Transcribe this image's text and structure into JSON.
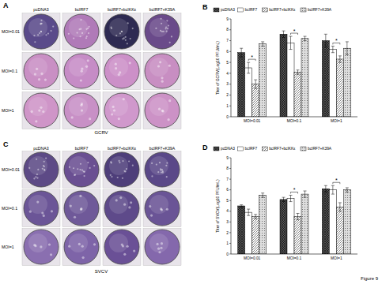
{
  "figure": {
    "label": "Figure 9",
    "panels": [
      {
        "title": "A",
        "columns": [
          "pcDNA3",
          "bcIRF7",
          "bcIRF7+bcIKKε",
          "bcIRF7+K39A"
        ],
        "rows": [
          "MOI=0.01",
          "MOI=0.1",
          "MOI=1"
        ],
        "virus": "GCRV"
      },
      {
        "title": "C",
        "columns": [
          "pcDNA3",
          "bcIRF7",
          "bcIRF7+bcIKKε",
          "bcIRF7+K39A"
        ],
        "rows": [
          "MOI=0.01",
          "MOI=0.1",
          "MOI=1"
        ],
        "virus": "SVCV"
      }
    ]
  },
  "chart_data": [
    {
      "type": "bar",
      "title": "B",
      "y_label": "Titer of GCRV(Log10 PFU/mL)",
      "categories": [
        "MOI=0.01",
        "MOI=0.1",
        "MOI=1"
      ],
      "series": [
        {
          "name": "pcDNA3",
          "color": "#555555",
          "values": [
            5.9,
            7.6,
            7.0
          ],
          "errors": [
            0.4,
            0.3,
            0.6
          ]
        },
        {
          "name": "bcIRF7",
          "color": "#ffffff",
          "values": [
            4.5,
            6.8,
            6.2
          ],
          "errors": [
            0.5,
            0.6,
            0.3
          ]
        },
        {
          "name": "bcIRF7+bcIKKε",
          "color": "#ffffff",
          "values": [
            3.0,
            4.1,
            5.3
          ],
          "errors": [
            0.4,
            0.2,
            0.3
          ]
        },
        {
          "name": "bcIRF7+K39A",
          "color": "#dddddd",
          "values": [
            6.7,
            7.2,
            6.3
          ],
          "errors": [
            0.2,
            0.2,
            0.6
          ]
        }
      ],
      "annotations": [
        {
          "text": "*",
          "category": 0,
          "series": [
            1,
            2
          ]
        },
        {
          "text": "*",
          "category": 1,
          "series": [
            1,
            2
          ]
        },
        {
          "text": "*",
          "category": 2,
          "series": [
            1,
            2
          ]
        }
      ],
      "ylim": [
        0,
        9
      ],
      "yticks": [
        0,
        1,
        2,
        3,
        4,
        5,
        6,
        7,
        8,
        9
      ],
      "legend": "top",
      "grid": false
    },
    {
      "type": "bar",
      "title": "D",
      "y_label": "Titer of SVCV(Log10 PFU/mL)",
      "categories": [
        "MOI=0.01",
        "MOI=0.1",
        "MOI=1"
      ],
      "series": [
        {
          "name": "pcDNA3",
          "color": "#555555",
          "values": [
            4.5,
            5.1,
            6.1
          ],
          "errors": [
            0.1,
            0.2,
            0.3
          ]
        },
        {
          "name": "bcIRF7",
          "color": "#ffffff",
          "values": [
            3.9,
            5.2,
            6.0
          ],
          "errors": [
            0.3,
            0.3,
            0.4
          ]
        },
        {
          "name": "bcIRF7+bcIKKε",
          "color": "#ffffff",
          "values": [
            3.5,
            3.5,
            4.4
          ],
          "errors": [
            0.2,
            0.3,
            0.4
          ]
        },
        {
          "name": "bcIRF7+K39A",
          "color": "#dddddd",
          "values": [
            5.5,
            5.6,
            6.0
          ],
          "errors": [
            0.2,
            0.3,
            0.2
          ]
        }
      ],
      "annotations": [
        {
          "text": "*",
          "category": 1,
          "series": [
            1,
            2
          ]
        },
        {
          "text": "*",
          "category": 2,
          "series": [
            1,
            2
          ]
        }
      ],
      "ylim": [
        0,
        9
      ],
      "yticks": [
        0,
        1,
        2,
        3,
        4,
        5,
        6,
        7,
        8,
        9
      ],
      "legend": "top",
      "grid": false
    }
  ]
}
